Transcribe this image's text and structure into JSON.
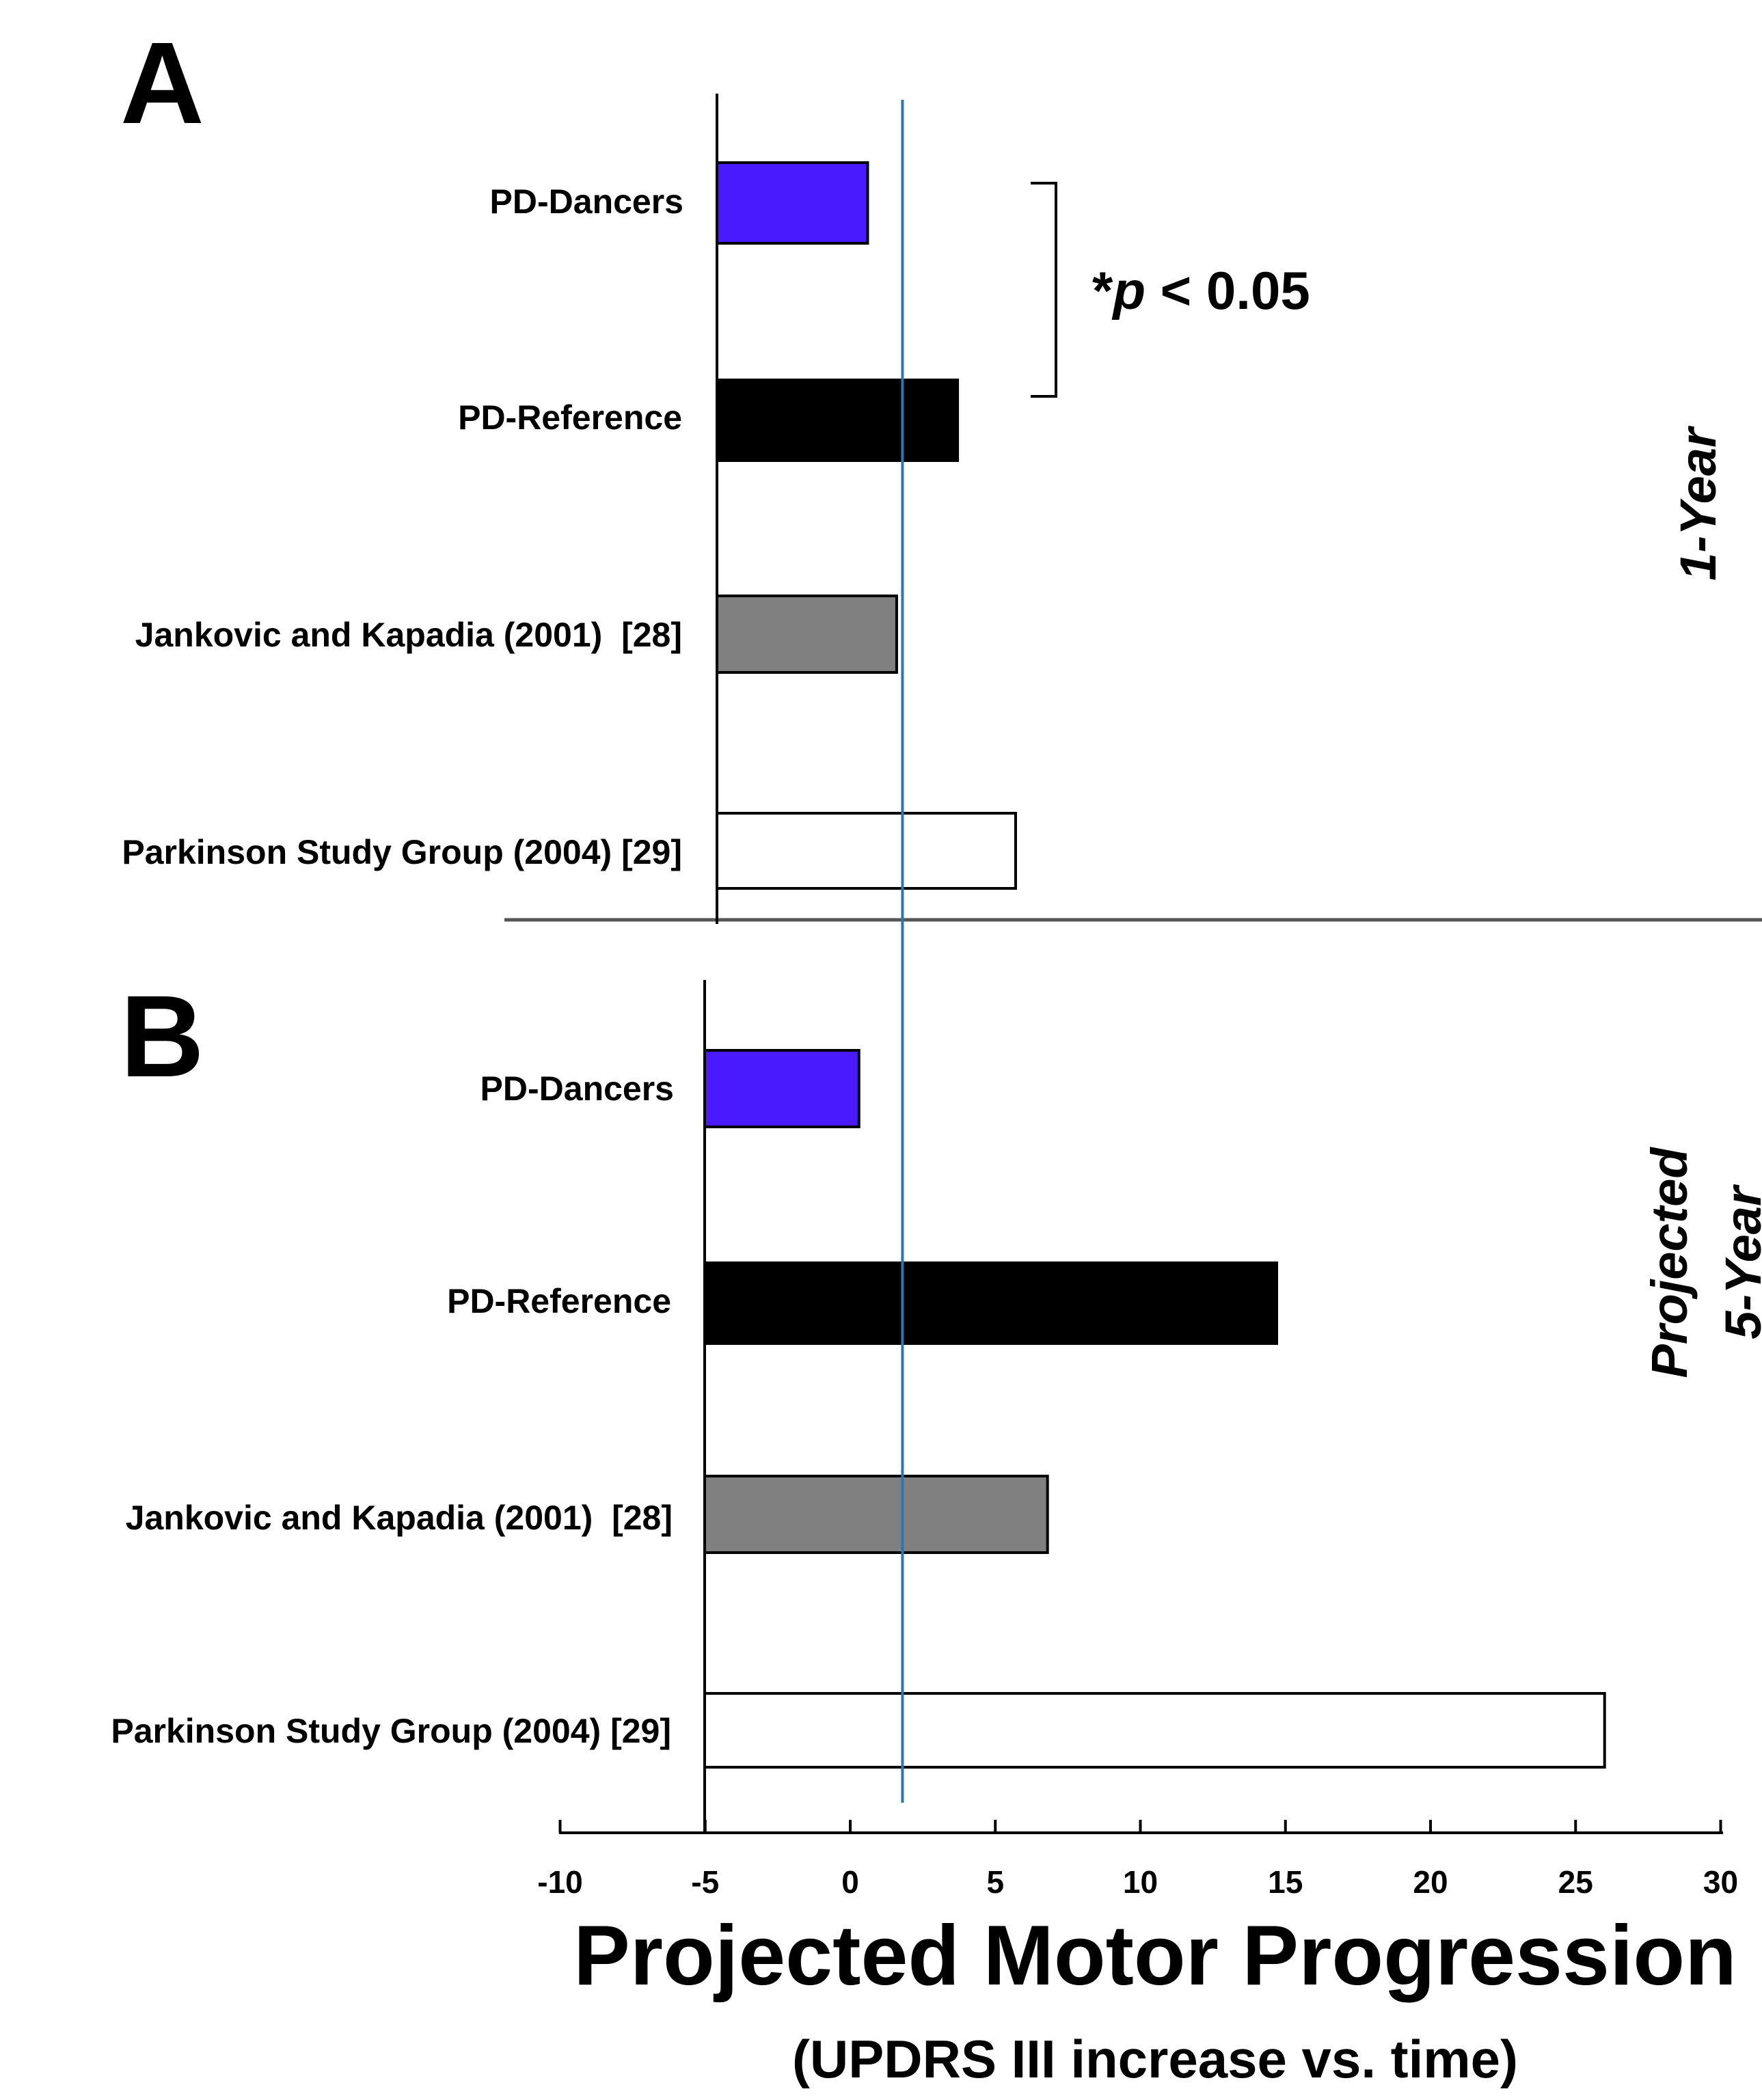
{
  "chart_data": {
    "type": "bar",
    "orientation": "horizontal",
    "xlabel": "Projected Motor Progression",
    "xlabel_sub": "(UPDRS III increase vs. time)",
    "xlim": [
      -10,
      30
    ],
    "xticks": [
      -10,
      -5,
      0,
      5,
      10,
      15,
      20,
      25,
      30
    ],
    "reference_line_x": 1.8,
    "reference_line_color": "#2e75b6",
    "panels": [
      {
        "letter": "A",
        "side_label_lines": [
          "1-Year"
        ],
        "annotation": {
          "star": "*",
          "p": "p",
          "rest": " < 0.05"
        },
        "categories": [
          "PD-Dancers",
          "PD-Reference",
          "Jankovic and Kapadia (2001)  [28]",
          "Parkinson Study Group (2004) [29]"
        ],
        "values": [
          0.6,
          3.7,
          1.6,
          5.7
        ],
        "colors": [
          "#4a1aff",
          "#000000",
          "#808080",
          "#ffffff"
        ]
      },
      {
        "letter": "B",
        "side_label_lines": [
          "Projected",
          "5-Year"
        ],
        "categories": [
          "PD-Dancers",
          "PD-Reference",
          "Jankovic and Kapadia (2001)  [28]",
          "Parkinson Study Group (2004) [29]"
        ],
        "values": [
          0.3,
          14.7,
          6.8,
          26.0
        ],
        "colors": [
          "#4a1aff",
          "#000000",
          "#808080",
          "#ffffff"
        ]
      }
    ]
  }
}
